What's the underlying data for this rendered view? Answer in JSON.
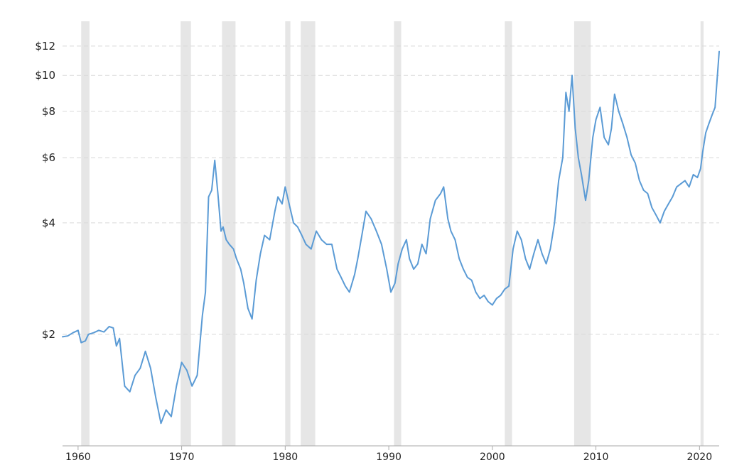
{
  "chart_data": {
    "type": "line",
    "title": "",
    "xlabel": "",
    "ylabel": "",
    "y_scale": "log",
    "xlim": [
      1958.5,
      2021.9
    ],
    "ylim": [
      1.0,
      14.0
    ],
    "yticks": [
      {
        "value": 2,
        "label": "$2"
      },
      {
        "value": 4,
        "label": "$4"
      },
      {
        "value": 6,
        "label": "$6"
      },
      {
        "value": 8,
        "label": "$8"
      },
      {
        "value": 10,
        "label": "$10"
      },
      {
        "value": 12,
        "label": "$12"
      }
    ],
    "xticks": [
      {
        "value": 1960,
        "label": "1960"
      },
      {
        "value": 1970,
        "label": "1970"
      },
      {
        "value": 1980,
        "label": "1980"
      },
      {
        "value": 1990,
        "label": "1990"
      },
      {
        "value": 2000,
        "label": "2000"
      },
      {
        "value": 2010,
        "label": "2010"
      },
      {
        "value": 2020,
        "label": "2020"
      }
    ],
    "grid": "horizontal-dashed",
    "colors": {
      "line": "#5b9bd5",
      "recession": "#e6e6e6",
      "grid": "#d9d9d9",
      "axis": "#aaaaaa"
    },
    "shaded_periods": [
      [
        1960.3,
        1961.1
      ],
      [
        1969.9,
        1970.9
      ],
      [
        1973.9,
        1975.2
      ],
      [
        1980.0,
        1980.5
      ],
      [
        1981.5,
        1982.9
      ],
      [
        1990.5,
        1991.2
      ],
      [
        2001.2,
        2001.9
      ],
      [
        2007.9,
        2009.5
      ],
      [
        2020.1,
        2020.4
      ]
    ],
    "series": [
      {
        "name": "",
        "x": [
          1958.5,
          1959.0,
          1959.5,
          1960.0,
          1960.3,
          1960.7,
          1961.0,
          1961.5,
          1962.0,
          1962.5,
          1963.0,
          1963.4,
          1963.7,
          1964.0,
          1964.5,
          1965.0,
          1965.5,
          1966.0,
          1966.5,
          1967.0,
          1967.5,
          1968.0,
          1968.5,
          1969.0,
          1969.5,
          1970.0,
          1970.5,
          1971.0,
          1971.5,
          1972.0,
          1972.3,
          1972.6,
          1972.9,
          1973.2,
          1973.5,
          1973.8,
          1974.0,
          1974.3,
          1974.6,
          1975.0,
          1975.3,
          1975.7,
          1976.0,
          1976.4,
          1976.8,
          1977.2,
          1977.6,
          1978.0,
          1978.5,
          1979.0,
          1979.3,
          1979.7,
          1980.0,
          1980.3,
          1980.8,
          1981.2,
          1981.6,
          1982.0,
          1982.5,
          1983.0,
          1983.5,
          1984.0,
          1984.5,
          1985.0,
          1985.4,
          1985.8,
          1986.2,
          1986.7,
          1987.0,
          1987.4,
          1987.8,
          1988.3,
          1988.8,
          1989.3,
          1989.8,
          1990.2,
          1990.6,
          1990.9,
          1991.3,
          1991.7,
          1992.0,
          1992.4,
          1992.8,
          1993.2,
          1993.6,
          1994.0,
          1994.5,
          1995.0,
          1995.3,
          1995.7,
          1996.0,
          1996.4,
          1996.8,
          1997.2,
          1997.6,
          1998.0,
          1998.4,
          1998.8,
          1999.2,
          1999.6,
          2000.0,
          2000.4,
          2000.8,
          2001.2,
          2001.6,
          2002.0,
          2002.4,
          2002.8,
          2003.2,
          2003.6,
          2004.0,
          2004.4,
          2004.8,
          2005.2,
          2005.6,
          2006.0,
          2006.4,
          2006.8,
          2007.1,
          2007.4,
          2007.7,
          2008.0,
          2008.3,
          2008.6,
          2009.0,
          2009.3,
          2009.7,
          2010.0,
          2010.4,
          2010.8,
          2011.2,
          2011.5,
          2011.8,
          2012.2,
          2012.6,
          2013.0,
          2013.4,
          2013.8,
          2014.2,
          2014.6,
          2015.0,
          2015.4,
          2015.8,
          2016.2,
          2016.6,
          2017.0,
          2017.4,
          2017.8,
          2018.2,
          2018.6,
          2019.0,
          2019.4,
          2019.8,
          2020.1,
          2020.3,
          2020.6,
          2020.9,
          2021.2,
          2021.5,
          2021.9
        ],
        "y": [
          1.97,
          1.98,
          2.02,
          2.05,
          1.9,
          1.92,
          2.0,
          2.02,
          2.05,
          2.03,
          2.1,
          2.08,
          1.86,
          1.95,
          1.45,
          1.4,
          1.55,
          1.62,
          1.8,
          1.62,
          1.35,
          1.15,
          1.25,
          1.2,
          1.45,
          1.68,
          1.6,
          1.45,
          1.55,
          2.25,
          2.6,
          4.7,
          4.9,
          5.9,
          4.8,
          3.8,
          3.9,
          3.6,
          3.5,
          3.4,
          3.2,
          3.0,
          2.75,
          2.35,
          2.2,
          2.8,
          3.3,
          3.7,
          3.6,
          4.3,
          4.7,
          4.5,
          5.0,
          4.6,
          4.0,
          3.9,
          3.7,
          3.5,
          3.4,
          3.8,
          3.6,
          3.5,
          3.5,
          3.0,
          2.85,
          2.7,
          2.6,
          2.9,
          3.2,
          3.7,
          4.3,
          4.1,
          3.8,
          3.5,
          3.0,
          2.6,
          2.75,
          3.1,
          3.4,
          3.6,
          3.2,
          3.0,
          3.1,
          3.5,
          3.3,
          4.1,
          4.6,
          4.8,
          5.0,
          4.1,
          3.8,
          3.6,
          3.2,
          3.0,
          2.85,
          2.8,
          2.6,
          2.5,
          2.55,
          2.45,
          2.4,
          2.5,
          2.55,
          2.65,
          2.7,
          3.4,
          3.8,
          3.6,
          3.2,
          3.0,
          3.3,
          3.6,
          3.3,
          3.1,
          3.4,
          4.0,
          5.2,
          6.0,
          9.0,
          8.0,
          10.0,
          7.2,
          6.0,
          5.4,
          4.6,
          5.2,
          6.8,
          7.6,
          8.2,
          6.8,
          6.5,
          7.2,
          8.9,
          8.0,
          7.4,
          6.8,
          6.1,
          5.8,
          5.2,
          4.9,
          4.8,
          4.4,
          4.2,
          4.0,
          4.3,
          4.5,
          4.7,
          5.0,
          5.1,
          5.2,
          5.0,
          5.4,
          5.3,
          5.6,
          6.2,
          7.0,
          7.4,
          7.8,
          8.2,
          11.6
        ]
      }
    ]
  }
}
